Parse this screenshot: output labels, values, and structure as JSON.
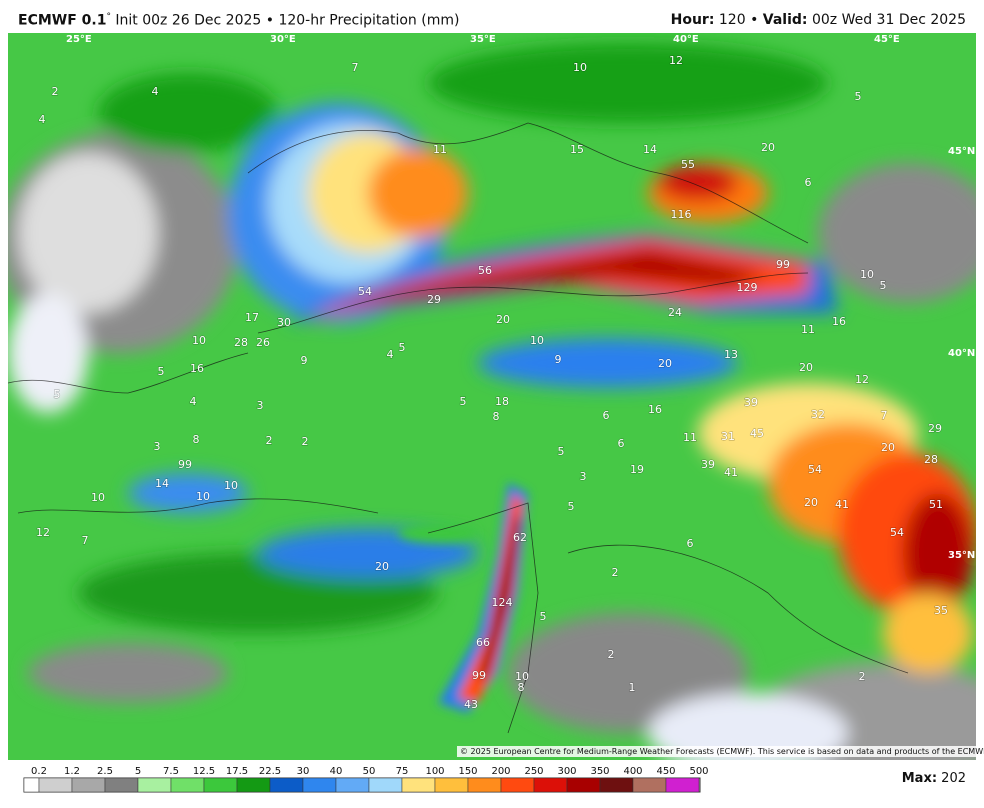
{
  "header": {
    "model": "ECMWF 0.1",
    "degree": "°",
    "init": "Init 00z 26 Dec 2025 • 120-hr Precipitation (mm)",
    "hour_label": "Hour:",
    "hour_value": "120 •",
    "valid_label": "Valid:",
    "valid_value": "00z Wed 31 Dec 2025"
  },
  "graticule": [
    "25°E",
    "30°E",
    "35°E",
    "40°E",
    "45°E",
    "45°N",
    "40°N",
    "35°N"
  ],
  "map_labels": [
    2,
    4,
    4,
    11,
    15,
    14,
    55,
    20,
    6,
    116,
    99,
    129,
    56,
    54,
    29,
    30,
    17,
    10,
    28,
    26,
    9,
    4,
    5,
    20,
    24,
    10,
    9,
    11,
    16,
    13,
    20,
    20,
    12,
    10,
    5,
    5,
    12,
    10,
    7,
    16,
    5,
    4,
    3,
    5,
    18,
    8,
    6,
    16,
    39,
    32,
    7,
    29,
    45,
    31,
    11,
    20,
    28,
    6,
    19,
    39,
    41,
    54,
    5,
    3,
    51,
    20,
    41,
    54,
    5,
    6,
    2,
    62,
    20,
    124,
    5,
    35,
    66,
    2,
    99,
    10,
    8,
    1,
    43,
    2,
    10,
    12,
    7,
    10,
    14,
    99,
    10,
    2,
    2,
    3,
    8,
    5
  ],
  "copyright": "© 2025 European Centre for Medium-Range Weather Forecasts (ECMWF). This service is based on data and products of the ECMWF.",
  "colorbar": {
    "labels": [
      0.2,
      1.2,
      2.5,
      5,
      7.5,
      12.5,
      17.5,
      22.5,
      30,
      40,
      50,
      75,
      100,
      150,
      200,
      250,
      300,
      350,
      400,
      450,
      500
    ],
    "colors": [
      "#ffffff",
      "#cfcfcf",
      "#a8a8a8",
      "#808080",
      "#a8f0a0",
      "#70e068",
      "#3cc83c",
      "#149a14",
      "#0c5cc8",
      "#2f86ee",
      "#62aaf6",
      "#a0d8fa",
      "#ffe27c",
      "#ffbf3c",
      "#ff8c1c",
      "#ff4a10",
      "#dc1008",
      "#a80000",
      "#6e1010",
      "#b07060",
      "#d020d0"
    ]
  },
  "max_label": "Max:",
  "max_value": 202
}
